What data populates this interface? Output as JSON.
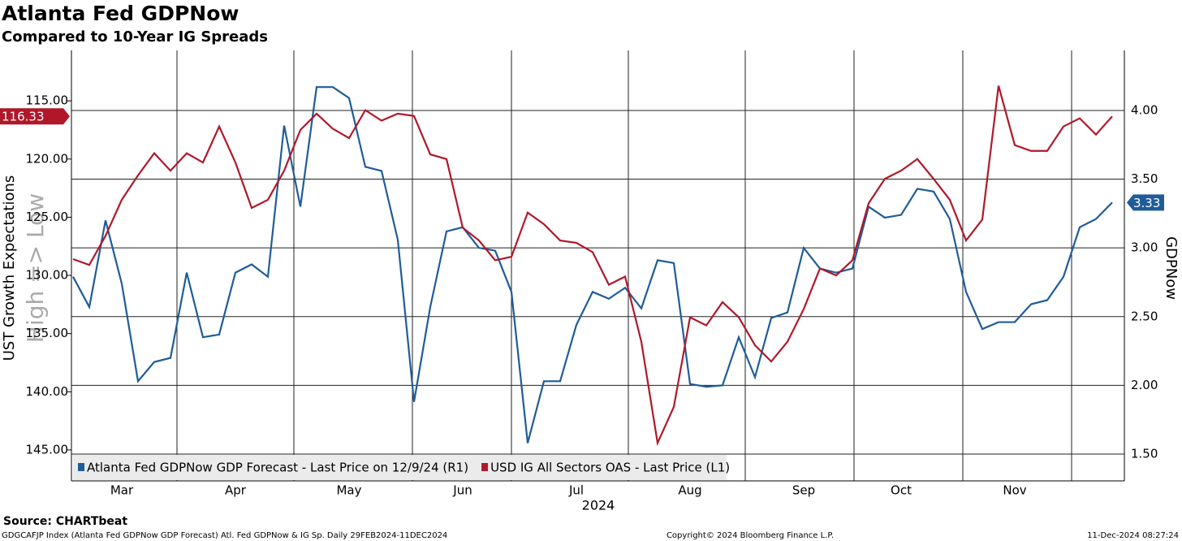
{
  "chart_data": {
    "type": "line",
    "title": "Atlanta Fed GDPNow",
    "subtitle": "Compared to 10-Year IG Spreads",
    "ylabel": "UST Growth Expectations",
    "y2label": "GDPNow",
    "xlabel": "2024",
    "annotation": "High => Low",
    "source": "Source: CHARTbeat",
    "footer_left": "GDGCAFJP Index (Atlanta Fed GDPNow GDP Forecast) Atl. Fed GDPNow & IG Sp.  Daily 29FEB2024-11DEC2024",
    "footer_center": "Copyright© 2024 Bloomberg Finance L.P.",
    "footer_right": "11-Dec-2024 08:27:24",
    "categories": [
      null,
      null,
      null,
      "Mar",
      null,
      null,
      null,
      null,
      null,
      null,
      "Apr",
      null,
      null,
      null,
      null,
      null,
      null,
      "May",
      null,
      null,
      null,
      null,
      null,
      null,
      "Jun",
      null,
      null,
      null,
      null,
      null,
      null,
      "Jul",
      null,
      null,
      null,
      null,
      null,
      null,
      "Aug",
      null,
      null,
      null,
      null,
      null,
      null,
      "Sep",
      null,
      null,
      null,
      null,
      null,
      "Oct",
      null,
      null,
      null,
      null,
      null,
      null,
      "Nov",
      null,
      null,
      null,
      null,
      null,
      null
    ],
    "series": [
      {
        "name": "Atlanta Fed GDPNow GDP Forecast - Last Price on 12/9/24 (R1)",
        "color": "#1f5c99",
        "axis": "y2",
        "values": [
          2.79,
          2.57,
          3.2,
          2.74,
          2.03,
          2.17,
          2.2,
          2.82,
          2.35,
          2.37,
          2.82,
          2.88,
          2.79,
          3.89,
          3.3,
          4.17,
          4.17,
          4.09,
          3.59,
          3.56,
          3.06,
          1.88,
          2.57,
          3.12,
          3.15,
          3.0,
          2.98,
          2.68,
          1.58,
          2.03,
          2.03,
          2.44,
          2.68,
          2.63,
          2.71,
          2.56,
          2.91,
          2.89,
          2.01,
          1.99,
          2.0,
          2.35,
          2.06,
          2.49,
          2.53,
          3.0,
          2.85,
          2.82,
          2.85,
          3.3,
          3.22,
          3.24,
          3.43,
          3.41,
          3.21,
          2.68,
          2.41,
          2.46,
          2.46,
          2.59,
          2.62,
          2.79,
          3.15,
          3.21,
          3.33
        ]
      },
      {
        "name": "USD IG All Sectors OAS - Last Price (L1)",
        "color": "#b0182a",
        "axis": "y",
        "values": [
          128.6,
          129.1,
          126.6,
          123.5,
          121.4,
          119.5,
          121.0,
          119.5,
          120.3,
          117.2,
          120.3,
          124.2,
          123.5,
          121.0,
          117.5,
          116.1,
          117.4,
          118.2,
          115.8,
          116.7,
          116.1,
          116.3,
          119.6,
          120.0,
          125.9,
          127.0,
          128.7,
          128.4,
          124.6,
          125.6,
          127.0,
          127.2,
          128.0,
          130.8,
          130.1,
          135.7,
          144.4,
          141.3,
          133.6,
          134.3,
          132.3,
          133.6,
          136.0,
          137.4,
          135.7,
          132.9,
          129.4,
          130.0,
          128.7,
          123.8,
          121.7,
          121.0,
          120.0,
          121.7,
          123.5,
          127.0,
          125.2,
          113.7,
          118.8,
          119.3,
          119.3,
          117.2,
          116.5,
          117.9,
          116.33
        ]
      }
    ],
    "ylim": [
      147.66,
      110.66
    ],
    "yticks": [
      {
        "value": 115,
        "label": "115.00"
      },
      {
        "value": 120,
        "label": "120.00"
      },
      {
        "value": 125,
        "label": "125.00"
      },
      {
        "value": 130,
        "label": "130.00"
      },
      {
        "value": 135,
        "label": "135.00"
      },
      {
        "value": 140,
        "label": "140.00"
      },
      {
        "value": 145,
        "label": "145.00"
      }
    ],
    "y2lim": [
      1.305,
      4.437
    ],
    "y2ticks": [
      {
        "value": 1.5,
        "label": "1.50"
      },
      {
        "value": 2,
        "label": "2.00"
      },
      {
        "value": 2.5,
        "label": "2.50"
      },
      {
        "value": 3,
        "label": "3.00"
      },
      {
        "value": 3.5,
        "label": "3.50"
      },
      {
        "value": 4,
        "label": "4.00"
      }
    ],
    "grid": true
  }
}
